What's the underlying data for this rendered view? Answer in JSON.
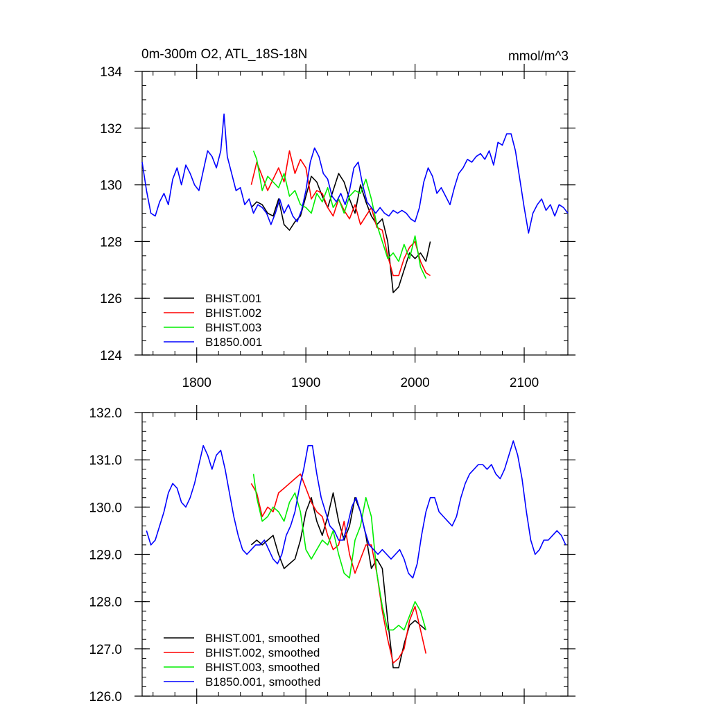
{
  "chart_data": [
    {
      "type": "line",
      "title": "0m-300m O2, ATL_18S-18N",
      "units": "mmol/m^3",
      "xlim": [
        1750,
        2140
      ],
      "ylim": [
        124,
        134
      ],
      "x_ticks": [
        1800,
        1900,
        2000,
        2100
      ],
      "x_tick_labels": [
        "1800",
        "1900",
        "2000",
        "2100"
      ],
      "y_ticks": [
        124,
        126,
        128,
        130,
        132,
        134
      ],
      "y_tick_labels": [
        "124",
        "126",
        "128",
        "130",
        "132",
        "134"
      ],
      "legend_position": "lower-left",
      "grid": false,
      "series": [
        {
          "name": "BHIST.001",
          "color": "#000000",
          "x": [
            1850,
            1855,
            1860,
            1865,
            1870,
            1875,
            1880,
            1885,
            1890,
            1895,
            1900,
            1905,
            1910,
            1915,
            1920,
            1925,
            1930,
            1935,
            1940,
            1945,
            1950,
            1955,
            1960,
            1965,
            1970,
            1975,
            1980,
            1985,
            1990,
            1995,
            2000,
            2005,
            2010,
            2014
          ],
          "values": [
            129.2,
            129.4,
            129.3,
            129.0,
            128.9,
            129.5,
            128.6,
            128.4,
            128.7,
            128.9,
            129.6,
            130.3,
            130.1,
            129.6,
            129.2,
            129.8,
            130.4,
            130.1,
            129.5,
            129.0,
            130.0,
            129.4,
            128.9,
            128.6,
            128.8,
            128.0,
            126.2,
            126.4,
            127.0,
            127.6,
            127.4,
            127.6,
            127.3,
            128.0
          ]
        },
        {
          "name": "BHIST.002",
          "color": "#ff0000",
          "x": [
            1850,
            1855,
            1860,
            1865,
            1870,
            1875,
            1880,
            1885,
            1890,
            1895,
            1900,
            1905,
            1910,
            1915,
            1920,
            1925,
            1930,
            1935,
            1940,
            1945,
            1950,
            1955,
            1960,
            1965,
            1970,
            1975,
            1980,
            1985,
            1990,
            1995,
            2000,
            2005,
            2010,
            2014
          ],
          "values": [
            130.0,
            130.8,
            130.3,
            129.8,
            130.2,
            130.6,
            130.1,
            131.2,
            130.4,
            130.9,
            130.6,
            129.5,
            129.8,
            129.7,
            129.2,
            128.9,
            129.5,
            129.1,
            128.8,
            129.3,
            128.6,
            128.9,
            129.2,
            128.5,
            128.4,
            127.5,
            126.8,
            126.8,
            127.4,
            127.8,
            128.0,
            127.3,
            126.9,
            126.8
          ]
        },
        {
          "name": "BHIST.003",
          "color": "#00ee00",
          "x": [
            1852,
            1855,
            1860,
            1865,
            1870,
            1875,
            1880,
            1885,
            1890,
            1895,
            1900,
            1905,
            1910,
            1915,
            1920,
            1925,
            1930,
            1935,
            1940,
            1945,
            1950,
            1955,
            1960,
            1965,
            1970,
            1975,
            1980,
            1985,
            1990,
            1995,
            2000,
            2005,
            2010
          ],
          "values": [
            131.2,
            130.9,
            129.8,
            130.3,
            130.1,
            129.9,
            130.4,
            129.6,
            129.8,
            129.3,
            129.2,
            129.0,
            129.7,
            129.4,
            129.9,
            129.2,
            129.5,
            129.0,
            129.6,
            129.8,
            129.7,
            130.2,
            129.5,
            128.6,
            128.0,
            127.4,
            127.6,
            127.3,
            127.9,
            127.4,
            128.2,
            127.1,
            126.7
          ]
        },
        {
          "name": "B1850.001",
          "color": "#0000ff",
          "x": [
            1750,
            1754,
            1758,
            1762,
            1766,
            1770,
            1774,
            1778,
            1782,
            1786,
            1790,
            1794,
            1798,
            1802,
            1806,
            1810,
            1814,
            1818,
            1822,
            1825,
            1828,
            1832,
            1836,
            1840,
            1844,
            1848,
            1852,
            1856,
            1860,
            1864,
            1868,
            1872,
            1876,
            1880,
            1884,
            1888,
            1892,
            1896,
            1900,
            1904,
            1908,
            1912,
            1916,
            1920,
            1924,
            1928,
            1932,
            1936,
            1940,
            1944,
            1948,
            1952,
            1956,
            1960,
            1964,
            1968,
            1972,
            1976,
            1980,
            1984,
            1988,
            1992,
            1996,
            2000,
            2004,
            2008,
            2012,
            2016,
            2020,
            2024,
            2028,
            2032,
            2036,
            2040,
            2044,
            2048,
            2052,
            2056,
            2060,
            2064,
            2068,
            2072,
            2076,
            2080,
            2084,
            2088,
            2092,
            2096,
            2100,
            2104,
            2108,
            2112,
            2116,
            2120,
            2124,
            2128,
            2132,
            2136,
            2140
          ],
          "values": [
            130.8,
            129.8,
            129.0,
            128.9,
            129.4,
            129.7,
            129.3,
            130.2,
            130.6,
            130.0,
            130.7,
            130.4,
            130.0,
            129.8,
            130.5,
            131.2,
            131.0,
            130.6,
            131.2,
            132.5,
            131.0,
            130.4,
            129.8,
            129.9,
            129.3,
            129.5,
            129.0,
            129.3,
            129.2,
            129.0,
            128.6,
            129.0,
            129.5,
            129.0,
            129.3,
            128.9,
            128.7,
            129.1,
            129.8,
            130.8,
            131.3,
            131.0,
            130.4,
            130.2,
            129.6,
            129.4,
            129.7,
            129.3,
            129.8,
            130.6,
            130.8,
            130.0,
            129.4,
            129.2,
            129.0,
            129.2,
            129.0,
            128.9,
            129.1,
            129.0,
            129.1,
            129.0,
            128.8,
            128.7,
            129.2,
            130.1,
            130.6,
            130.3,
            129.7,
            129.9,
            129.6,
            129.3,
            129.9,
            130.4,
            130.6,
            130.9,
            130.8,
            131.0,
            131.1,
            130.9,
            131.2,
            130.7,
            131.5,
            131.4,
            131.8,
            131.8,
            131.2,
            130.2,
            129.2,
            128.3,
            129.0,
            129.3,
            129.5,
            129.1,
            129.3,
            128.9,
            129.3,
            129.2,
            129.0
          ]
        }
      ]
    },
    {
      "type": "line",
      "xlim": [
        1750,
        2140
      ],
      "ylim": [
        126.0,
        132.0
      ],
      "x_ticks": [
        1800,
        1900,
        2000,
        2100
      ],
      "y_ticks": [
        126.0,
        127.0,
        128.0,
        129.0,
        130.0,
        131.0,
        132.0
      ],
      "y_tick_labels": [
        "126.0",
        "127.0",
        "128.0",
        "129.0",
        "130.0",
        "131.0",
        "132.0"
      ],
      "legend_position": "lower-left",
      "grid": false,
      "series": [
        {
          "name": "BHIST.001, smoothed",
          "color": "#000000",
          "x": [
            1850,
            1855,
            1860,
            1865,
            1870,
            1875,
            1880,
            1885,
            1890,
            1895,
            1900,
            1905,
            1910,
            1915,
            1920,
            1925,
            1930,
            1935,
            1940,
            1945,
            1950,
            1955,
            1960,
            1965,
            1970,
            1975,
            1980,
            1985,
            1990,
            1995,
            2000,
            2005,
            2010
          ],
          "values": [
            129.2,
            129.3,
            129.2,
            129.3,
            129.4,
            129.0,
            128.7,
            128.8,
            128.9,
            129.3,
            129.9,
            130.2,
            129.7,
            129.4,
            129.8,
            130.3,
            129.7,
            129.3,
            129.6,
            130.2,
            129.9,
            129.4,
            128.7,
            128.9,
            128.7,
            127.6,
            126.6,
            126.6,
            127.1,
            127.5,
            127.6,
            127.5,
            127.4
          ]
        },
        {
          "name": "BHIST.002, smoothed",
          "color": "#ff0000",
          "x": [
            1850,
            1855,
            1860,
            1865,
            1870,
            1875,
            1880,
            1885,
            1890,
            1895,
            1900,
            1905,
            1910,
            1915,
            1920,
            1925,
            1930,
            1935,
            1940,
            1945,
            1950,
            1955,
            1960,
            1965,
            1970,
            1975,
            1980,
            1985,
            1990,
            1995,
            2000,
            2005,
            2010
          ],
          "values": [
            130.5,
            130.3,
            129.8,
            130.0,
            129.9,
            130.3,
            130.4,
            130.5,
            130.6,
            130.7,
            130.4,
            130.1,
            129.9,
            129.8,
            129.4,
            129.1,
            129.2,
            129.7,
            129.0,
            128.6,
            128.9,
            129.2,
            129.2,
            128.6,
            127.8,
            127.2,
            126.7,
            126.8,
            127.0,
            127.6,
            127.9,
            127.4,
            126.9
          ]
        },
        {
          "name": "BHIST.003, smoothed",
          "color": "#00ee00",
          "x": [
            1852,
            1855,
            1860,
            1865,
            1870,
            1875,
            1880,
            1885,
            1890,
            1895,
            1900,
            1905,
            1910,
            1915,
            1920,
            1925,
            1930,
            1935,
            1940,
            1945,
            1950,
            1955,
            1960,
            1965,
            1970,
            1975,
            1980,
            1985,
            1990,
            1995,
            2000,
            2005,
            2010
          ],
          "values": [
            130.7,
            130.2,
            129.7,
            129.8,
            130.0,
            129.9,
            129.7,
            130.1,
            130.3,
            129.9,
            129.1,
            128.9,
            129.1,
            129.3,
            129.2,
            129.5,
            129.0,
            128.6,
            128.5,
            129.3,
            129.6,
            130.2,
            129.8,
            128.6,
            127.9,
            127.4,
            127.4,
            127.5,
            127.4,
            127.7,
            128.0,
            127.8,
            127.4
          ]
        },
        {
          "name": "B1850.001, smoothed",
          "color": "#0000ff",
          "x": [
            1754,
            1758,
            1762,
            1766,
            1770,
            1774,
            1778,
            1782,
            1786,
            1790,
            1794,
            1798,
            1802,
            1806,
            1810,
            1814,
            1818,
            1822,
            1826,
            1830,
            1834,
            1838,
            1842,
            1846,
            1850,
            1854,
            1858,
            1862,
            1866,
            1870,
            1874,
            1878,
            1882,
            1886,
            1890,
            1894,
            1898,
            1902,
            1906,
            1910,
            1914,
            1918,
            1922,
            1926,
            1930,
            1934,
            1938,
            1942,
            1946,
            1950,
            1954,
            1958,
            1962,
            1966,
            1970,
            1974,
            1978,
            1982,
            1986,
            1990,
            1994,
            1998,
            2002,
            2006,
            2010,
            2014,
            2018,
            2022,
            2026,
            2030,
            2034,
            2038,
            2042,
            2046,
            2050,
            2054,
            2058,
            2062,
            2066,
            2070,
            2074,
            2078,
            2082,
            2086,
            2090,
            2094,
            2098,
            2102,
            2106,
            2110,
            2114,
            2118,
            2122,
            2126,
            2130,
            2134,
            2138
          ],
          "values": [
            129.5,
            129.2,
            129.3,
            129.6,
            129.9,
            130.3,
            130.5,
            130.4,
            130.1,
            130.0,
            130.2,
            130.5,
            130.9,
            131.3,
            131.1,
            130.8,
            131.1,
            131.2,
            130.8,
            130.3,
            129.8,
            129.4,
            129.1,
            129.0,
            129.1,
            129.2,
            129.2,
            129.3,
            129.1,
            128.9,
            128.8,
            129.0,
            129.4,
            129.6,
            129.9,
            130.4,
            130.8,
            131.3,
            131.3,
            130.7,
            130.2,
            129.9,
            129.6,
            129.5,
            129.3,
            129.3,
            129.6,
            130.0,
            130.2,
            129.9,
            129.5,
            129.2,
            129.1,
            129.0,
            129.1,
            129.0,
            128.9,
            129.0,
            129.1,
            128.9,
            128.6,
            128.5,
            128.8,
            129.4,
            129.9,
            130.2,
            130.2,
            129.9,
            129.8,
            129.7,
            129.6,
            129.8,
            130.2,
            130.5,
            130.7,
            130.8,
            130.9,
            130.9,
            130.8,
            130.9,
            130.7,
            130.6,
            130.8,
            131.1,
            131.4,
            131.1,
            130.6,
            129.9,
            129.3,
            129.0,
            129.1,
            129.3,
            129.3,
            129.4,
            129.5,
            129.4,
            129.2
          ]
        }
      ]
    }
  ]
}
